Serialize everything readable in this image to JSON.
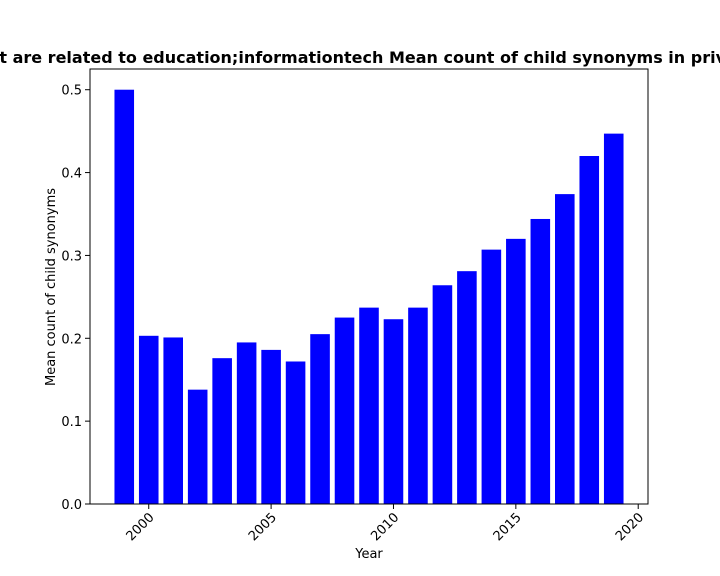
{
  "chart_data": {
    "type": "bar",
    "title": "Nodes that are related to education;informationtech Mean count of child synonyms in private schools",
    "xlabel": "Year",
    "ylabel": "Mean count of child synonyms",
    "x": [
      1999,
      2000,
      2001,
      2002,
      2003,
      2004,
      2005,
      2006,
      2007,
      2008,
      2009,
      2010,
      2011,
      2012,
      2013,
      2014,
      2015,
      2016,
      2017,
      2018,
      2019
    ],
    "values": [
      0.5,
      0.203,
      0.201,
      0.138,
      0.176,
      0.195,
      0.186,
      0.172,
      0.205,
      0.225,
      0.237,
      0.223,
      0.237,
      0.264,
      0.281,
      0.307,
      0.32,
      0.344,
      0.374,
      0.42,
      0.447
    ],
    "xlim": [
      1997.6,
      2020.4
    ],
    "ylim": [
      0,
      0.525
    ],
    "x_ticks": [
      2000,
      2005,
      2010,
      2015,
      2020
    ],
    "y_ticks": [
      0.0,
      0.1,
      0.2,
      0.3,
      0.4,
      0.5
    ],
    "x_tick_labels": [
      "2000",
      "2005",
      "2010",
      "2015",
      "2020"
    ],
    "y_tick_labels": [
      "0.0",
      "0.1",
      "0.2",
      "0.3",
      "0.4",
      "0.5"
    ],
    "bar_color": "#0000ff",
    "grid": false,
    "legend": false
  }
}
